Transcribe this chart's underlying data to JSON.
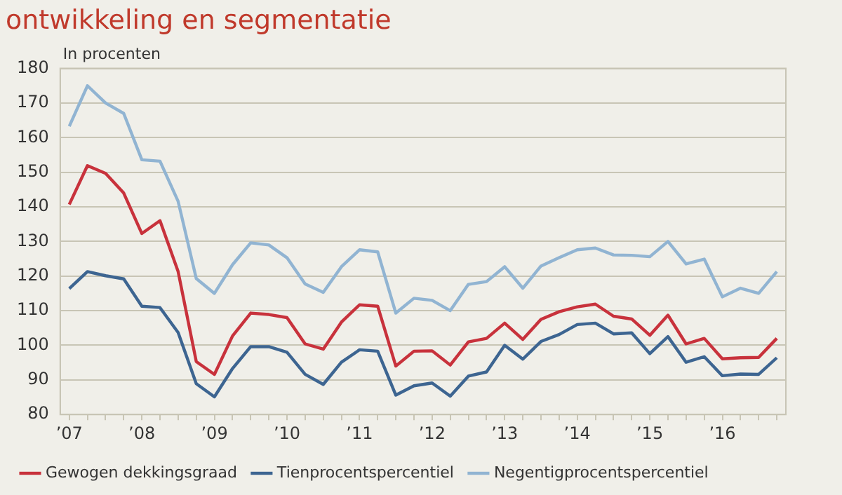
{
  "chart_data": {
    "type": "line",
    "title": "ontwikkeling en segmentatie",
    "ylabel": "In procenten",
    "categories": [
      "’07",
      null,
      null,
      null,
      "’08",
      null,
      null,
      null,
      "’09",
      null,
      null,
      null,
      "’10",
      null,
      null,
      null,
      "’11",
      null,
      null,
      null,
      "’12",
      null,
      null,
      null,
      "’13",
      null,
      null,
      null,
      "’14",
      null,
      null,
      null,
      "’15",
      null,
      null,
      null,
      "’16",
      null,
      null,
      null
    ],
    "series": [
      {
        "name": "Gewogen dekkingsgraad",
        "color": "#c8323c",
        "values": [
          140.7,
          151.9,
          149.7,
          144,
          132.3,
          136,
          121.3,
          95.3,
          91.6,
          102.7,
          109.3,
          108.9,
          108,
          100.4,
          98.9,
          106.7,
          111.7,
          111.3,
          94,
          98.3,
          98.4,
          94.3,
          101,
          102,
          106.4,
          101.7,
          107.5,
          109.7,
          111.1,
          111.9,
          108.4,
          107.6,
          102.9,
          108.7,
          100.4,
          102,
          96.1,
          96.4,
          96.5,
          102
        ]
      },
      {
        "name": "Tienprocentspercentiel",
        "color": "#3d6591",
        "values": [
          116.4,
          121.3,
          120.1,
          119.2,
          111.3,
          110.9,
          103.7,
          88.9,
          85.1,
          93.3,
          99.6,
          99.6,
          98,
          91.6,
          88.7,
          95.1,
          98.7,
          98.3,
          85.6,
          88.3,
          89.1,
          85.3,
          91.1,
          92.3,
          100,
          96,
          101.1,
          103.1,
          106,
          106.4,
          103.3,
          103.6,
          97.6,
          102.5,
          95.1,
          96.7,
          91.2,
          91.7,
          91.6,
          96.4
        ]
      },
      {
        "name": "Negentigprocentspercentiel",
        "color": "#91b4d2",
        "values": [
          163.3,
          175,
          170,
          167,
          153.6,
          153.2,
          141.6,
          119.3,
          115,
          123.3,
          129.6,
          129,
          125.3,
          117.7,
          115.3,
          122.7,
          127.6,
          127,
          109.3,
          113.6,
          113,
          110,
          117.6,
          118.4,
          122.7,
          116.5,
          122.9,
          125.3,
          127.6,
          128.1,
          126.1,
          126,
          125.6,
          130,
          123.5,
          124.9,
          114,
          116.5,
          115,
          121.3
        ]
      }
    ],
    "ylim": [
      80,
      180
    ],
    "yticks": [
      80,
      90,
      100,
      110,
      120,
      130,
      140,
      150,
      160,
      170,
      180
    ],
    "grid": "y",
    "legend": "bottom",
    "marker": "none",
    "line_style": "solid"
  }
}
